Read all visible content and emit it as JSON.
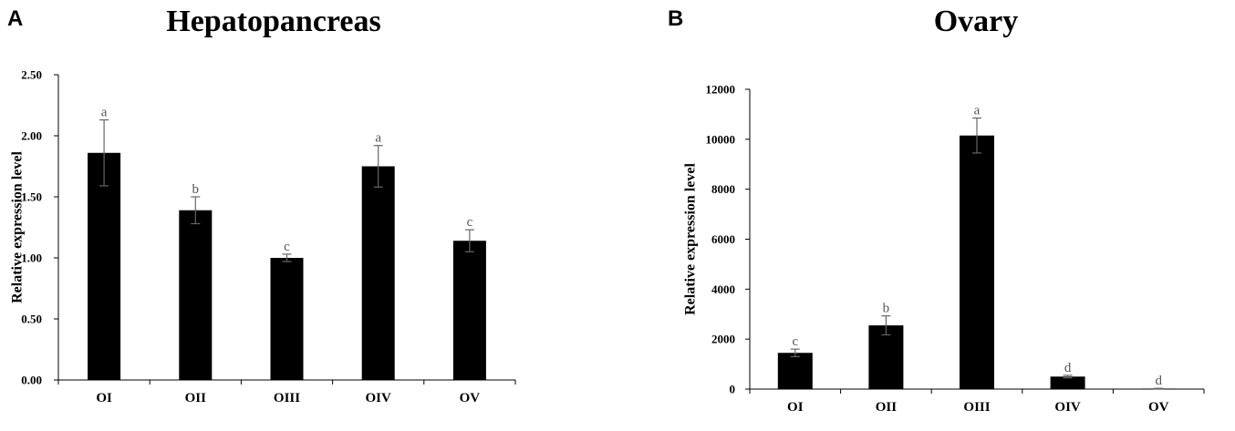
{
  "chart_data": [
    {
      "type": "bar",
      "panel": "A",
      "title": "Hepatopancreas",
      "xlabel": "",
      "ylabel": "Relative expression level",
      "categories": [
        "OI",
        "OII",
        "OIII",
        "OIV",
        "OV"
      ],
      "values": [
        1.86,
        1.39,
        1.0,
        1.75,
        1.14
      ],
      "errors": [
        0.27,
        0.11,
        0.03,
        0.17,
        0.09
      ],
      "significance": [
        "a",
        "b",
        "c",
        "a",
        "c"
      ],
      "ylim": [
        0,
        2.5
      ],
      "yticks": [
        0,
        0.5,
        1.0,
        1.5,
        2.0,
        2.5
      ],
      "ytick_labels": [
        "0.00",
        "0.50",
        "1.00",
        "1.50",
        "2.00",
        "2.50"
      ],
      "bar_color": "#000000",
      "grid": false,
      "legend": "none"
    },
    {
      "type": "bar",
      "panel": "B",
      "title": "Ovary",
      "xlabel": "",
      "ylabel": "Relative expression level",
      "categories": [
        "OI",
        "OII",
        "OIII",
        "OIV",
        "OV"
      ],
      "values": [
        1450,
        2550,
        10150,
        500,
        20
      ],
      "errors": [
        150,
        380,
        700,
        50,
        10
      ],
      "significance": [
        "c",
        "b",
        "a",
        "d",
        "d"
      ],
      "ylim": [
        0,
        12000
      ],
      "yticks": [
        0,
        2000,
        4000,
        6000,
        8000,
        10000,
        12000
      ],
      "ytick_labels": [
        "0",
        "2000",
        "4000",
        "6000",
        "8000",
        "10000",
        "12000"
      ],
      "bar_color": "#000000",
      "grid": false,
      "legend": "none"
    }
  ]
}
